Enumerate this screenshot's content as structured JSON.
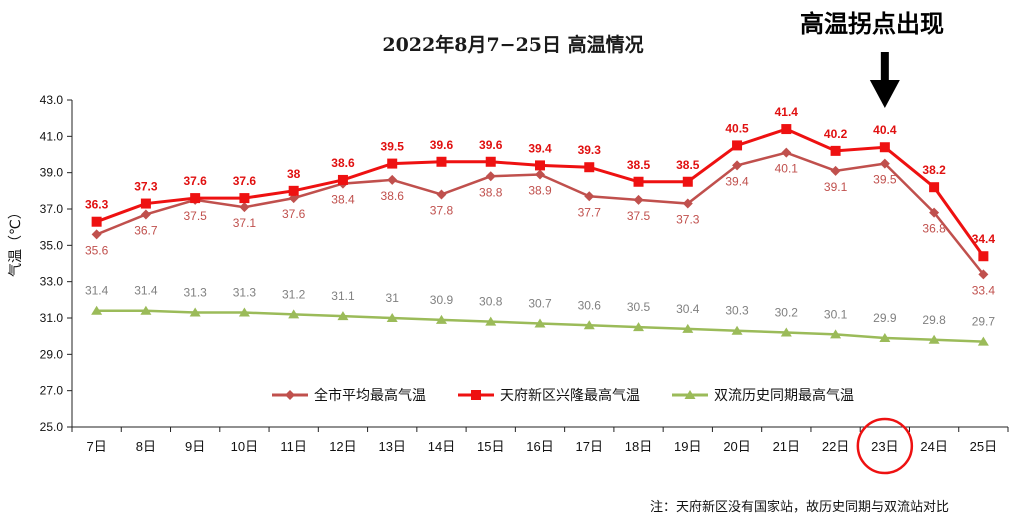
{
  "chart_data": {
    "type": "line",
    "title": "2022年8月7−25日 高温情况",
    "ylabel": "气温（℃）",
    "ylim": [
      25.0,
      43.0
    ],
    "yticks": [
      "25.0",
      "27.0",
      "29.0",
      "31.0",
      "33.0",
      "35.0",
      "37.0",
      "39.0",
      "41.0",
      "43.0"
    ],
    "categories": [
      "7日",
      "8日",
      "9日",
      "10日",
      "11日",
      "12日",
      "13日",
      "14日",
      "15日",
      "16日",
      "17日",
      "18日",
      "19日",
      "20日",
      "21日",
      "22日",
      "23日",
      "24日",
      "25日"
    ],
    "series": [
      {
        "name": "全市平均最高气温",
        "color": "#c0504d",
        "marker": "diamond",
        "values": [
          35.6,
          36.7,
          37.5,
          37.1,
          37.6,
          38.4,
          38.6,
          37.8,
          38.8,
          38.9,
          37.7,
          37.5,
          37.3,
          39.4,
          40.1,
          39.1,
          39.5,
          36.8,
          33.4
        ],
        "labels": [
          "35.6",
          "36.7",
          "37.5",
          "37.1",
          "37.6",
          "38.4",
          "38.6",
          "37.8",
          "38.8",
          "38.9",
          "37.7",
          "37.5",
          "37.3",
          "39.4",
          "40.1",
          "39.1",
          "39.5",
          "36.8",
          "33.4"
        ]
      },
      {
        "name": "天府新区兴隆最高气温",
        "color": "#ee1111",
        "marker": "square",
        "values": [
          36.3,
          37.3,
          37.6,
          37.6,
          38.0,
          38.6,
          39.5,
          39.6,
          39.6,
          39.4,
          39.3,
          38.5,
          38.5,
          40.5,
          41.4,
          40.2,
          40.4,
          38.2,
          34.4
        ],
        "labels": [
          "36.3",
          "37.3",
          "37.6",
          "37.6",
          "38",
          "38.6",
          "39.5",
          "39.6",
          "39.6",
          "39.4",
          "39.3",
          "38.5",
          "38.5",
          "40.5",
          "41.4",
          "40.2",
          "40.4",
          "38.2",
          "34.4"
        ]
      },
      {
        "name": "双流历史同期最高气温",
        "color": "#9bbb59",
        "marker": "triangle",
        "values": [
          31.4,
          31.4,
          31.3,
          31.3,
          31.2,
          31.1,
          31.0,
          30.9,
          30.8,
          30.7,
          30.6,
          30.5,
          30.4,
          30.3,
          30.2,
          30.1,
          29.9,
          29.8,
          29.7
        ],
        "labels": [
          "31.4",
          "31.4",
          "31.3",
          "31.3",
          "31.2",
          "31.1",
          "31",
          "30.9",
          "30.8",
          "30.7",
          "30.6",
          "30.5",
          "30.4",
          "30.3",
          "30.2",
          "30.1",
          "29.9",
          "29.8",
          "29.7"
        ]
      }
    ],
    "legend": "bottom-center",
    "grid": false,
    "highlight": {
      "category": "23日",
      "text": "高温拐点出现",
      "color": "#ee1111"
    }
  },
  "note": "注：天府新区没有国家站，故历史同期与双流站对比"
}
